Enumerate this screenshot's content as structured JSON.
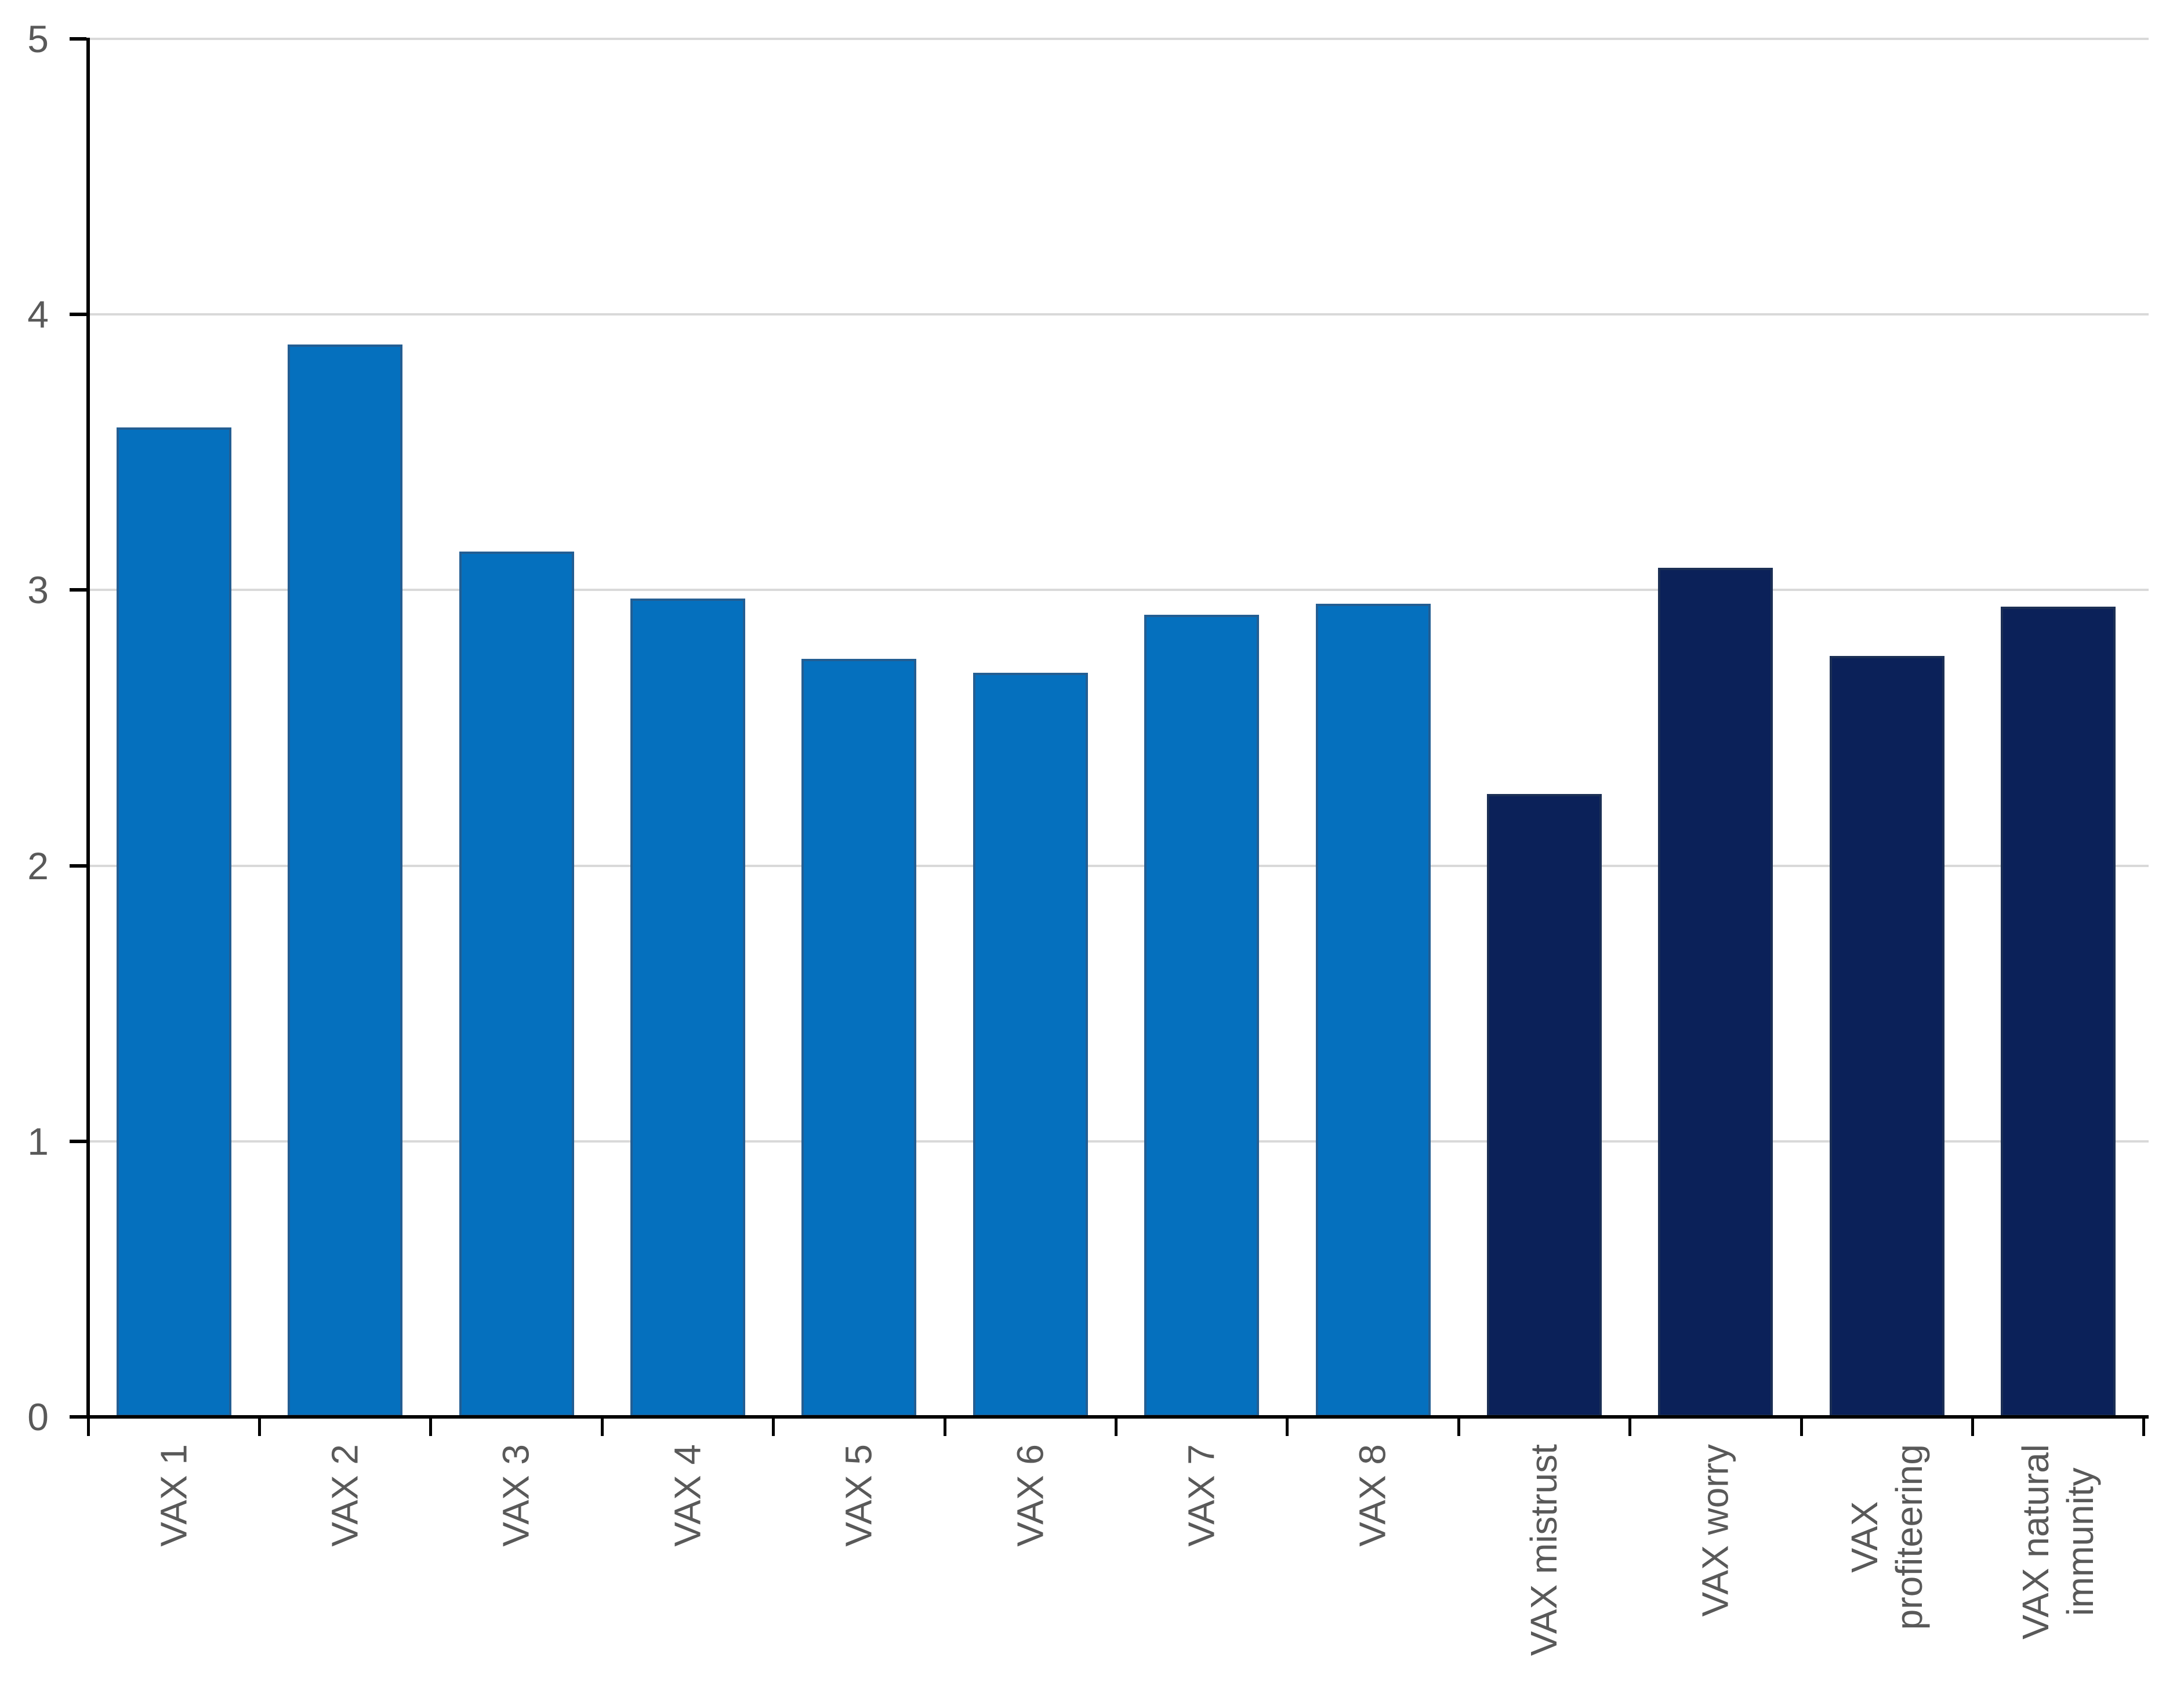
{
  "page": {
    "background_color": "#FFFFFF",
    "title": ""
  },
  "chart_data": {
    "type": "bar",
    "title": "",
    "xlabel": "",
    "ylabel": "",
    "ylim": [
      0,
      5
    ],
    "yticks": [
      0,
      1,
      2,
      3,
      4,
      5
    ],
    "grid": true,
    "legend_position": "none",
    "gridline_color": "#D9D9D9",
    "axis_line_color": "#000000",
    "tick_label_color": "#595959",
    "categories": [
      "VAX 1",
      "VAX 2",
      "VAX 3",
      "VAX 4",
      "VAX 5",
      "VAX 6",
      "VAX 7",
      "VAX 8",
      "VAX mistrust",
      "VAX worry",
      "VAX\nprofiteering",
      "VAX natural\nimmunity"
    ],
    "values": [
      3.59,
      3.89,
      3.14,
      2.97,
      2.75,
      2.7,
      2.91,
      2.95,
      2.26,
      3.08,
      2.76,
      2.94
    ],
    "bar_fill_colors": [
      "#0570BE",
      "#0570BE",
      "#0570BE",
      "#0570BE",
      "#0570BE",
      "#0570BE",
      "#0570BE",
      "#0570BE",
      "#0B2159",
      "#0B2159",
      "#0B2159",
      "#0B2159"
    ],
    "bar_border_colors": [
      "#235E93",
      "#235E93",
      "#235E93",
      "#235E93",
      "#235E93",
      "#235E93",
      "#235E93",
      "#235E93",
      "#1B2F55",
      "#1B2F55",
      "#1B2F55",
      "#1B2F55"
    ]
  }
}
